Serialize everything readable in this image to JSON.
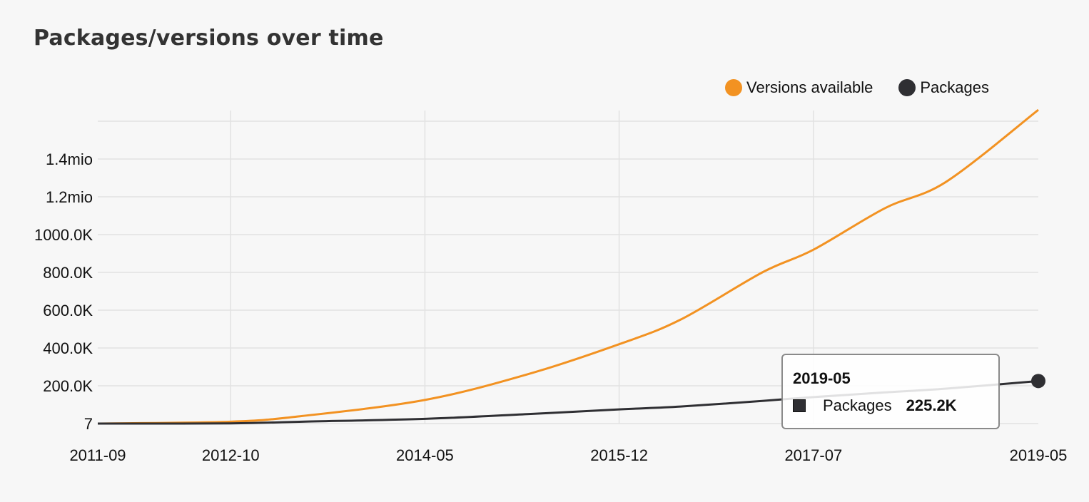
{
  "title": "Packages/versions over time",
  "colors": {
    "versions": "#f29222",
    "packages": "#2f2f33",
    "grid": "#e2e2e2",
    "background": "#f7f7f7"
  },
  "legend": [
    {
      "label": "Versions available",
      "color": "#f29222"
    },
    {
      "label": "Packages",
      "color": "#2f2f33"
    }
  ],
  "tooltip": {
    "date": "2019-05",
    "series": "Packages",
    "value": "225.2K",
    "swatch_color": "#2f2f33"
  },
  "chart_data": {
    "type": "line",
    "title": "Packages/versions over time",
    "xlabel": "",
    "ylabel": "",
    "x_tick_labels": [
      "2011-09",
      "2012-10",
      "2014-05",
      "2015-12",
      "2017-07",
      "2019-05"
    ],
    "x_ticks_month_index": [
      0,
      13,
      32,
      51,
      70,
      92
    ],
    "y_tick_labels": [
      "7",
      "200.0K",
      "400.0K",
      "600.0K",
      "800.0K",
      "1000.0K",
      "1.2mio",
      "1.4mio"
    ],
    "y_tick_values": [
      7,
      200000,
      400000,
      600000,
      800000,
      1000000,
      1200000,
      1400000
    ],
    "ylim": [
      0,
      1660000
    ],
    "grid": true,
    "legend_position": "top-right",
    "x": [
      "2011-09",
      "2012-10",
      "2013-05",
      "2014-05",
      "2015-03",
      "2015-12",
      "2016-06",
      "2017-02",
      "2017-07",
      "2018-02",
      "2018-08",
      "2019-05"
    ],
    "series": [
      {
        "name": "Versions available",
        "color": "#f29222",
        "values": [
          1,
          10000,
          40000,
          125000,
          260000,
          420000,
          550000,
          800000,
          920000,
          1140000,
          1280000,
          1660000
        ]
      },
      {
        "name": "Packages",
        "color": "#2f2f33",
        "values": [
          1,
          1000,
          10000,
          25000,
          50000,
          75000,
          90000,
          120000,
          140000,
          165000,
          185000,
          225200
        ]
      }
    ]
  }
}
